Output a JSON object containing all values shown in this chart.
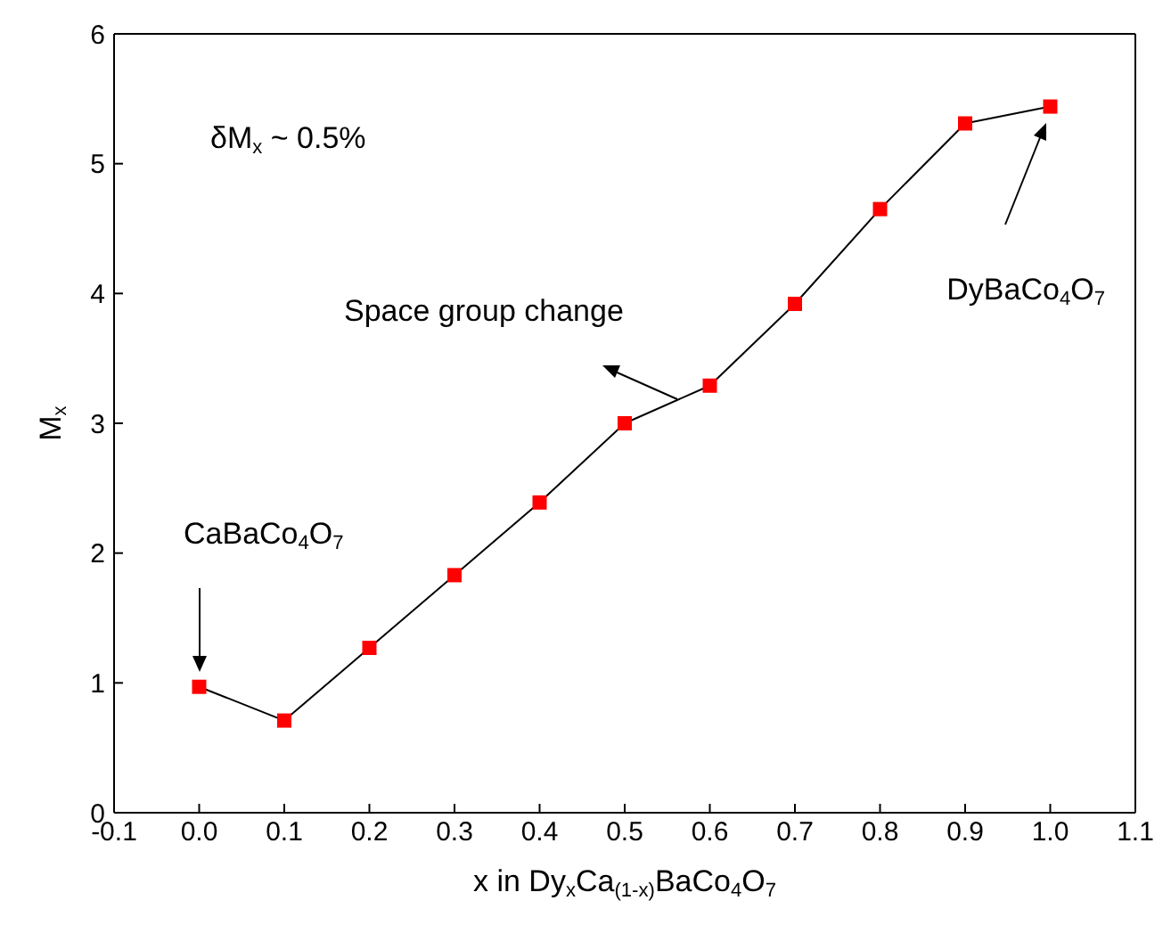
{
  "chart_data": {
    "type": "line",
    "xlabel": "x in Dy$_{x}$Ca$_{(1-x)}$BaCo$_{4}$O$_{7}$",
    "ylabel": "M$_{x}$",
    "x": [
      0,
      0.1,
      0.2,
      0.3,
      0.4,
      0.5,
      0.6,
      0.7,
      0.8,
      0.9,
      1.0
    ],
    "series": [
      {
        "color": "#ff0000",
        "values": [
          0.97,
          0.71,
          1.27,
          1.83,
          2.39,
          3.0,
          3.29,
          3.92,
          4.65,
          5.31,
          5.44
        ]
      }
    ],
    "xlim": [
      -0.1,
      1.1
    ],
    "xticks": [
      -0.1,
      {
        "value": 0,
        "label": "0.0"
      },
      0.1,
      0.2,
      0.3,
      0.4,
      0.5,
      0.6,
      0.7,
      0.8,
      0.9,
      {
        "value": 1,
        "label": "1.0"
      },
      1.1
    ],
    "ylim": [
      0,
      6
    ],
    "yticks": [
      0,
      1,
      2,
      3,
      4,
      5,
      6
    ],
    "marker": "square",
    "line_style": "solid",
    "annotations": [
      "δM$_{x}$ ~ 0.5%",
      "Space group change",
      "CaBaCo$_{4}$O$_{7}$",
      "DyBaCo$_{4}$O$_{7}$"
    ]
  }
}
